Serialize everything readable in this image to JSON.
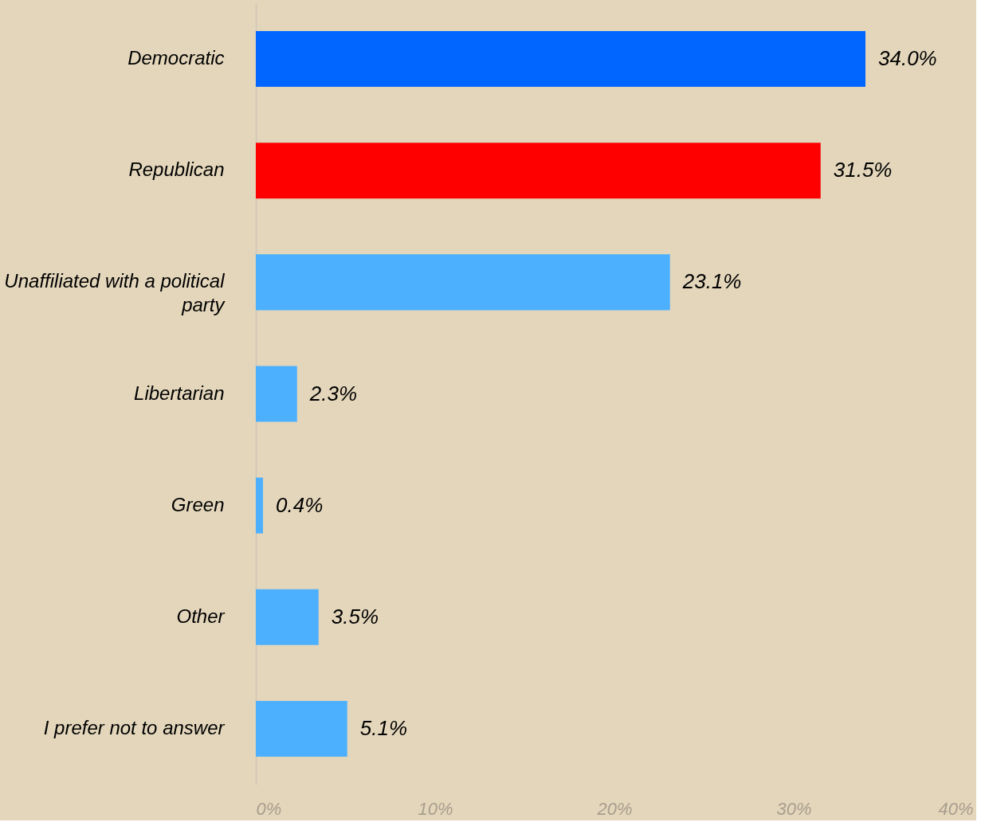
{
  "chart_data": {
    "type": "bar",
    "orientation": "horizontal",
    "categories": [
      "Democratic",
      "Republican",
      "Unaffiliated with a political party",
      "Libertarian",
      "Green",
      "Other",
      "I prefer not to answer"
    ],
    "values": [
      34.0,
      31.5,
      23.1,
      2.3,
      0.4,
      3.5,
      5.1
    ],
    "colors": [
      "#0066ff",
      "#ff0000",
      "#4db0ff",
      "#4db0ff",
      "#4db0ff",
      "#4db0ff",
      "#4db0ff"
    ],
    "value_labels": [
      "34.0%",
      "31.5%",
      "23.1%",
      "2.3%",
      "0.4%",
      "3.5%",
      "5.1%"
    ],
    "xlim": [
      0,
      40
    ],
    "xticks": [
      {
        "value": 0,
        "label": "0%"
      },
      {
        "value": 10,
        "label": "10%"
      },
      {
        "value": 20,
        "label": "20%"
      },
      {
        "value": 30,
        "label": "30%"
      },
      {
        "value": 40,
        "label": "40%"
      }
    ],
    "grid": false
  }
}
